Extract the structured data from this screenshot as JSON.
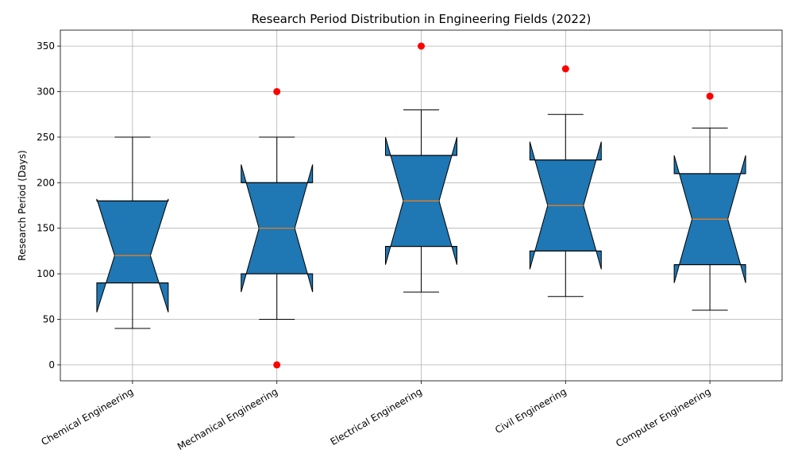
{
  "chart_data": {
    "type": "boxplot",
    "title": "Research Period Distribution in Engineering Fields (2022)",
    "xlabel": "",
    "ylabel": "Research Period (Days)",
    "ylim": [
      -17.5,
      367.5
    ],
    "yticks": [
      0,
      50,
      100,
      150,
      200,
      250,
      300,
      350
    ],
    "grid": true,
    "notched": true,
    "box_color": "#1f77b4",
    "median_color": "#ff7f0e",
    "outlier_color": "#ff0000",
    "categories": [
      "Chemical Engineering",
      "Mechanical Engineering",
      "Electrical Engineering",
      "Civil Engineering",
      "Computer Engineering"
    ],
    "boxes": [
      {
        "min": 40,
        "q1": 90,
        "median": 120,
        "q3": 180,
        "max": 250,
        "notch_low": 57.8,
        "notch_high": 182.2,
        "outliers": []
      },
      {
        "min": 50,
        "q1": 100,
        "median": 150,
        "q3": 200,
        "max": 250,
        "notch_low": 80.0,
        "notch_high": 220.0,
        "outliers": [
          0,
          300
        ]
      },
      {
        "min": 80,
        "q1": 130,
        "median": 180,
        "q3": 230,
        "max": 280,
        "notch_low": 110.0,
        "notch_high": 250.0,
        "outliers": [
          350
        ]
      },
      {
        "min": 75,
        "q1": 125,
        "median": 175,
        "q3": 225,
        "max": 275,
        "notch_low": 105.0,
        "notch_high": 245.0,
        "outliers": [
          325
        ]
      },
      {
        "min": 60,
        "q1": 110,
        "median": 160,
        "q3": 210,
        "max": 260,
        "notch_low": 90.0,
        "notch_high": 230.0,
        "outliers": [
          295
        ]
      }
    ]
  }
}
